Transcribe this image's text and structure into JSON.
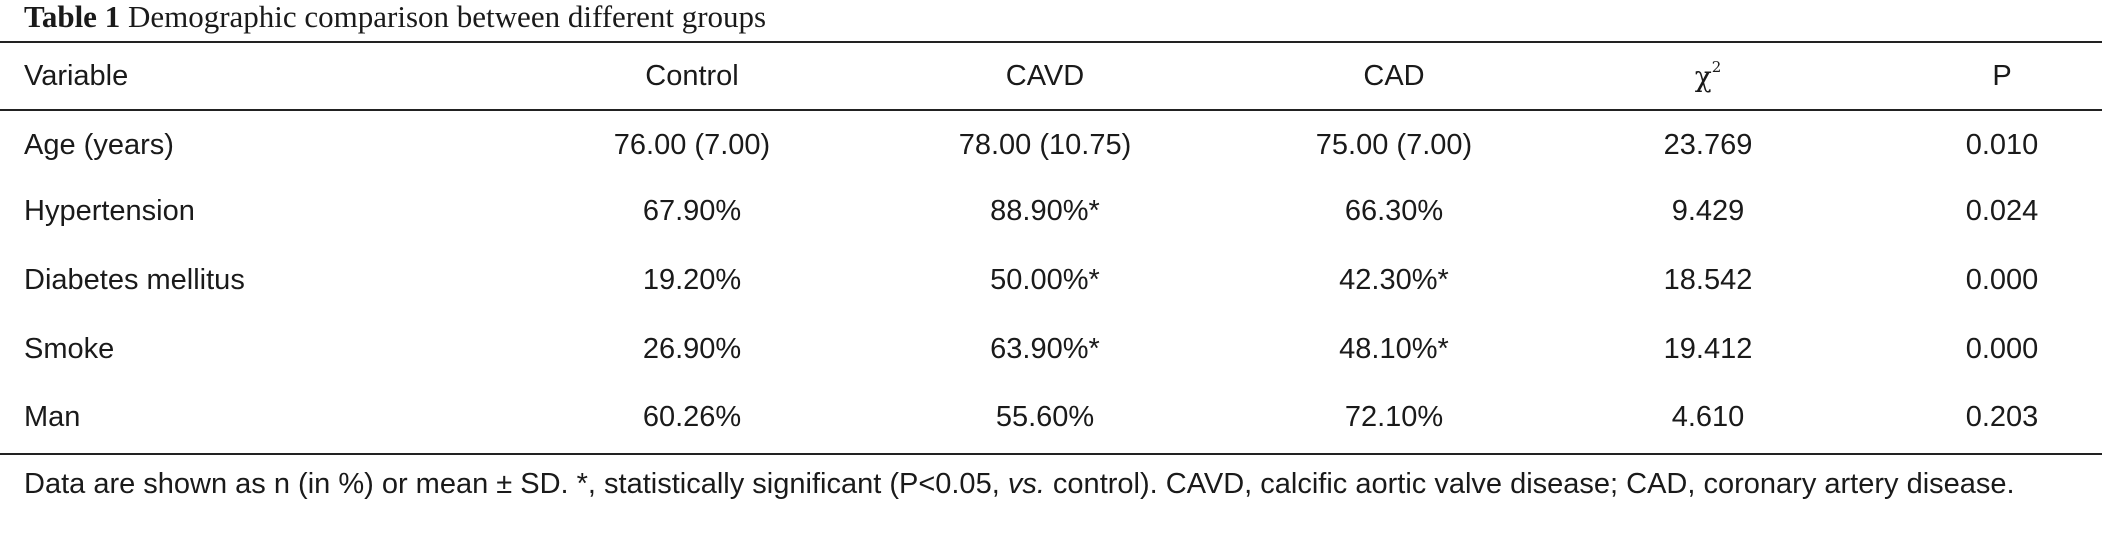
{
  "caption": {
    "number": "Table 1",
    "title": "Demographic comparison between different groups"
  },
  "table": {
    "columns": [
      "Variable",
      "Control",
      "CAVD",
      "CAD",
      "χ",
      "P"
    ],
    "chi_superscript": "2",
    "rows": [
      {
        "variable": "Age (years)",
        "control": "76.00 (7.00)",
        "cavd": "78.00 (10.75)",
        "cad": "75.00 (7.00)",
        "chi2": "23.769",
        "p": "0.010"
      },
      {
        "variable": "Hypertension",
        "control": "67.90%",
        "cavd": "88.90%*",
        "cad": "66.30%",
        "chi2": "9.429",
        "p": "0.024"
      },
      {
        "variable": "Diabetes mellitus",
        "control": "19.20%",
        "cavd": "50.00%*",
        "cad": "42.30%*",
        "chi2": "18.542",
        "p": "0.000"
      },
      {
        "variable": "Smoke",
        "control": "26.90%",
        "cavd": "63.90%*",
        "cad": "48.10%*",
        "chi2": "19.412",
        "p": "0.000"
      },
      {
        "variable": "Man",
        "control": "60.26%",
        "cavd": "55.60%",
        "cad": "72.10%",
        "chi2": "4.610",
        "p": "0.203"
      }
    ]
  },
  "footnote": {
    "part1": "Data are shown as n (in %) or mean ± SD. *, statistically significant (P<0.05, ",
    "italic": "vs.",
    "part2": " control). CAVD, calcific aortic valve disease; CAD, coronary artery disease."
  }
}
